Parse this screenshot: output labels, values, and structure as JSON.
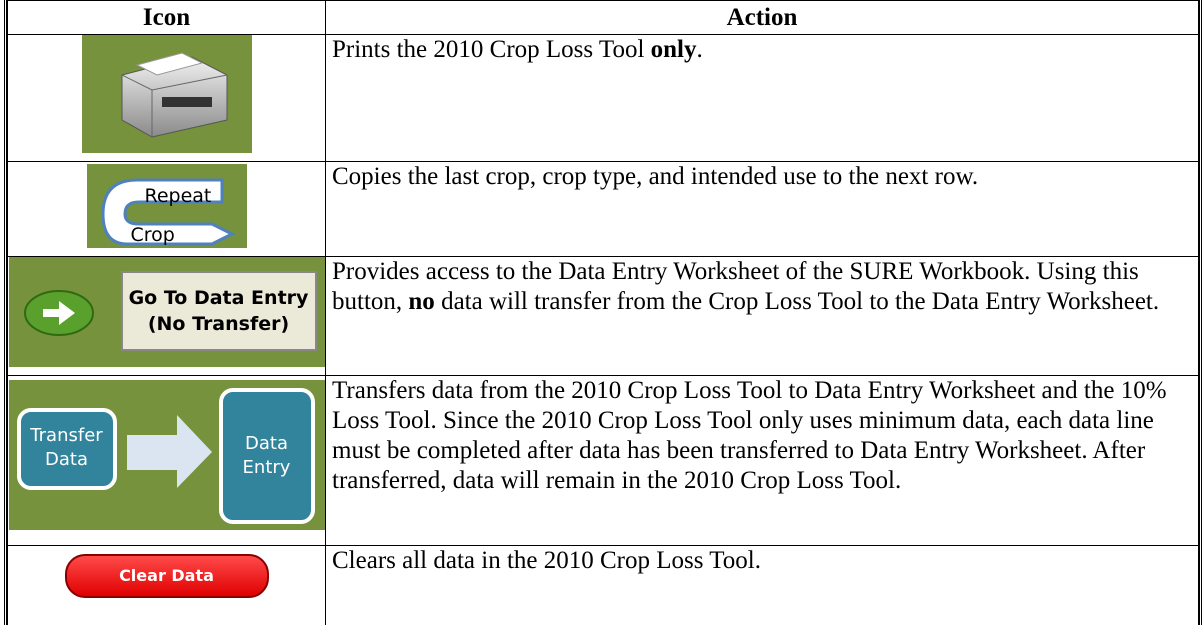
{
  "header": {
    "icon": "Icon",
    "action": "Action"
  },
  "rows": [
    {
      "icon_labels": [],
      "action": [
        {
          "text": "Prints the 2010 Crop Loss Tool ",
          "bold": false
        },
        {
          "text": "only",
          "bold": true
        },
        {
          "text": ".",
          "bold": false
        }
      ]
    },
    {
      "icon_labels": [
        "Repeat",
        "Crop"
      ],
      "action": [
        {
          "text": "Copies the last crop, crop type, and intended use to the next row.",
          "bold": false
        }
      ]
    },
    {
      "icon_labels": [
        "Go To Data Entry",
        "(No Transfer)"
      ],
      "action": [
        {
          "text": "Provides access to the Data Entry Worksheet of the SURE Workbook.  Using this button, ",
          "bold": false
        },
        {
          "text": "no",
          "bold": true
        },
        {
          "text": " data will transfer from the Crop Loss Tool to the Data Entry Worksheet.",
          "bold": false
        }
      ]
    },
    {
      "icon_labels": [
        "Transfer Data",
        "Data Entry"
      ],
      "action": [
        {
          "text": "Transfers data from the 2010 Crop Loss Tool to Data Entry Worksheet and the 10% Loss Tool.  Since the 2010 Crop Loss Tool only uses minimum data, each data line must be completed after data has been transferred to Data Entry Worksheet.  After transferred, data will remain in the 2010 Crop Loss Tool.",
          "bold": false
        }
      ]
    },
    {
      "icon_labels": [
        "Clear Data"
      ],
      "action": [
        {
          "text": "Clears all data in the 2010 Crop Loss Tool.",
          "bold": false
        }
      ]
    }
  ]
}
